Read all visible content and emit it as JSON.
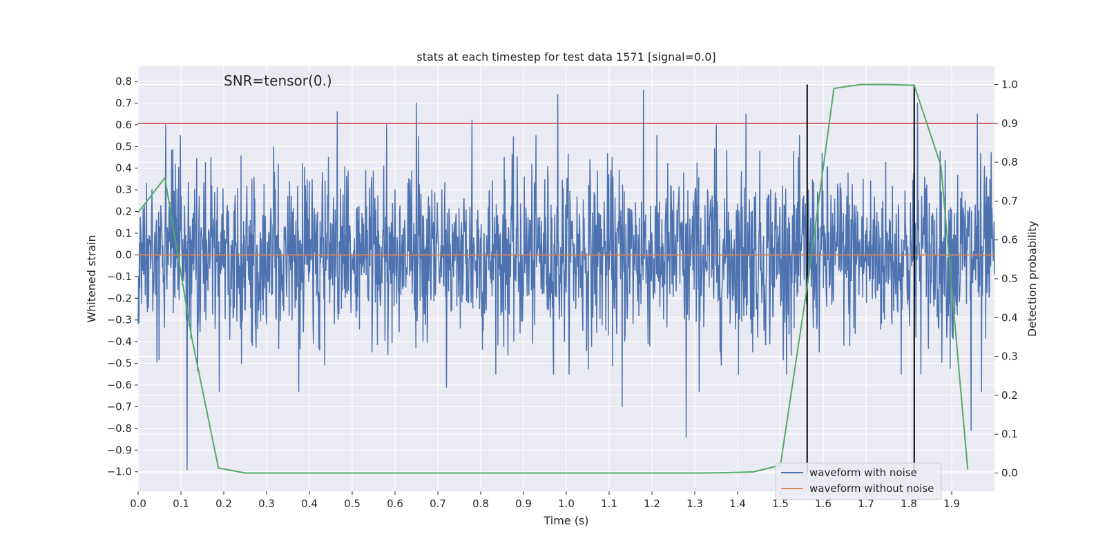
{
  "chart_data": {
    "type": "line",
    "title": "stats at each timestep for test data 1571 [signal=0.0]",
    "xlabel": "Time (s)",
    "ylabel": "Whitened strain",
    "y2label": "Detection probability",
    "annotation": "SNR=tensor(0.)",
    "xlim": [
      0.0,
      2.0
    ],
    "ylim": [
      -1.09,
      0.87
    ],
    "y2lim": [
      -0.047,
      1.047
    ],
    "x_ticks": [
      "0.0",
      "0.1",
      "0.2",
      "0.3",
      "0.4",
      "0.5",
      "0.6",
      "0.7",
      "0.8",
      "0.9",
      "1.0",
      "1.1",
      "1.2",
      "1.3",
      "1.4",
      "1.5",
      "1.6",
      "1.7",
      "1.8",
      "1.9"
    ],
    "y_ticks": [
      "0.8",
      "0.7",
      "0.6",
      "0.5",
      "0.4",
      "0.3",
      "0.2",
      "0.1",
      "0.0",
      "−0.1",
      "−0.2",
      "−0.3",
      "−0.4",
      "−0.5",
      "−0.6",
      "−0.7",
      "−0.8",
      "−0.9",
      "−1.0"
    ],
    "y2_ticks": [
      "1.0",
      "0.9",
      "0.8",
      "0.7",
      "0.6",
      "0.5",
      "0.4",
      "0.3",
      "0.2",
      "0.1",
      "0.0"
    ],
    "grid": true,
    "legend_position": "lower-right",
    "series": [
      {
        "name": "waveform with noise",
        "axis": "left",
        "color": "#4c72b0",
        "description_only": false,
        "noise": {
          "n_points": 2048,
          "sigma": 0.2,
          "seed": 1571,
          "spikes": [
            [
              0.114,
              -0.99
            ],
            [
              0.064,
              0.6
            ],
            [
              0.19,
              -0.63
            ],
            [
              0.375,
              -0.63
            ],
            [
              0.465,
              0.66
            ],
            [
              0.58,
              0.6
            ],
            [
              0.65,
              0.7
            ],
            [
              0.72,
              -0.61
            ],
            [
              0.78,
              0.62
            ],
            [
              0.98,
              0.74
            ],
            [
              1.18,
              0.76
            ],
            [
              1.13,
              -0.7
            ],
            [
              1.28,
              -0.84
            ],
            [
              1.31,
              -0.63
            ],
            [
              1.35,
              0.6
            ],
            [
              1.42,
              0.65
            ],
            [
              1.82,
              0.7
            ],
            [
              1.96,
              0.65
            ],
            [
              1.945,
              -0.81
            ],
            [
              1.97,
              -0.63
            ]
          ]
        }
      },
      {
        "name": "waveform without noise",
        "axis": "left",
        "color": "#dd8452",
        "x": [
          0.0,
          2.0
        ],
        "y": [
          0.0,
          0.0
        ]
      },
      {
        "name": "",
        "axis": "right",
        "color": "#55a868",
        "x": [
          0.0,
          0.0625,
          0.125,
          0.1875,
          0.25,
          0.3125,
          0.375,
          0.4375,
          0.5,
          0.5625,
          0.625,
          0.6875,
          0.75,
          0.8125,
          0.875,
          0.9375,
          1.0,
          1.0625,
          1.125,
          1.1875,
          1.25,
          1.3125,
          1.375,
          1.4375,
          1.5,
          1.5625,
          1.625,
          1.6875,
          1.75,
          1.8125,
          1.875,
          1.9375
        ],
        "y": [
          0.67,
          0.76,
          0.35,
          0.013,
          0.0,
          0.0,
          0.0,
          0.0,
          0.0,
          0.0,
          0.0,
          0.0,
          0.0,
          0.0,
          0.0,
          0.0,
          0.0,
          0.0,
          0.0,
          0.0,
          0.0,
          0.0,
          0.001,
          0.003,
          0.02,
          0.48,
          0.99,
          1.0,
          1.0,
          0.998,
          0.79,
          0.009
        ]
      }
    ],
    "threshold": {
      "axis": "right",
      "value": 0.9,
      "color": "#c44e52"
    },
    "vlines": [
      {
        "x": 1.5625,
        "y2": [
          0.0,
          1.0
        ],
        "color": "#000000"
      },
      {
        "x": 1.8125,
        "y2": [
          0.0,
          1.0
        ],
        "color": "#000000"
      }
    ]
  },
  "colors": {
    "axes_bg": "#eaeaf2",
    "grid": "#ffffff"
  }
}
